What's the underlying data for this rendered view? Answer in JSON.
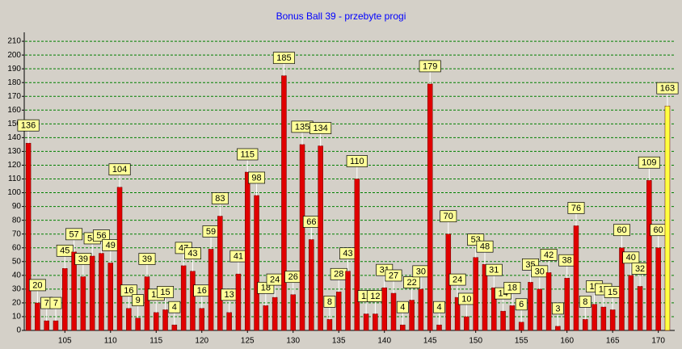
{
  "chart_data": {
    "type": "bar",
    "title": "Bonus Ball 39 - przebyte progi",
    "x": [
      101,
      102,
      103,
      104,
      105,
      106,
      107,
      108,
      109,
      110,
      111,
      112,
      113,
      114,
      115,
      116,
      117,
      118,
      119,
      120,
      121,
      122,
      123,
      124,
      125,
      126,
      127,
      128,
      129,
      130,
      131,
      132,
      133,
      134,
      135,
      136,
      137,
      138,
      139,
      140,
      141,
      142,
      143,
      144,
      145,
      146,
      147,
      148,
      149,
      150,
      151,
      152,
      153,
      154,
      155,
      156,
      157,
      158,
      159,
      160,
      161,
      162,
      163,
      164,
      165,
      166,
      167,
      168,
      169,
      170,
      171
    ],
    "values": [
      136,
      20,
      7,
      7,
      45,
      57,
      39,
      54,
      56,
      49,
      104,
      16,
      9,
      39,
      13,
      15,
      4,
      47,
      43,
      16,
      59,
      83,
      13,
      41,
      115,
      98,
      18,
      24,
      185,
      26,
      135,
      66,
      134,
      8,
      28,
      43,
      110,
      12,
      12,
      31,
      27,
      4,
      22,
      30,
      179,
      4,
      70,
      24,
      10,
      53,
      48,
      31,
      14,
      18,
      6,
      35,
      30,
      42,
      3,
      38,
      76,
      8,
      19,
      17,
      15,
      60,
      40,
      32,
      109,
      60,
      163
    ],
    "colors": [
      "#e00000",
      "#e00000",
      "#e00000",
      "#e00000",
      "#e00000",
      "#e00000",
      "#e00000",
      "#e00000",
      "#e00000",
      "#e00000",
      "#e00000",
      "#e00000",
      "#e00000",
      "#e00000",
      "#e00000",
      "#e00000",
      "#e00000",
      "#e00000",
      "#e00000",
      "#e00000",
      "#e00000",
      "#e00000",
      "#e00000",
      "#e00000",
      "#e00000",
      "#e00000",
      "#e00000",
      "#e00000",
      "#e00000",
      "#e00000",
      "#e00000",
      "#e00000",
      "#e00000",
      "#e00000",
      "#e00000",
      "#e00000",
      "#e00000",
      "#e00000",
      "#e00000",
      "#e00000",
      "#e00000",
      "#e00000",
      "#e00000",
      "#e00000",
      "#e00000",
      "#e00000",
      "#e00000",
      "#e00000",
      "#e00000",
      "#e00000",
      "#e00000",
      "#e00000",
      "#e00000",
      "#e00000",
      "#e00000",
      "#e00000",
      "#e00000",
      "#e00000",
      "#e00000",
      "#e00000",
      "#e00000",
      "#e00000",
      "#e00000",
      "#e00000",
      "#e00000",
      "#e00000",
      "#e00000",
      "#e00000",
      "#e00000",
      "#e00000",
      "#ffff40"
    ],
    "xlim": [
      100.55,
      171.8
    ],
    "xticks": [
      105,
      110,
      115,
      120,
      125,
      130,
      135,
      140,
      145,
      150,
      155,
      160,
      165,
      170
    ],
    "ylim": [
      0,
      216.5
    ],
    "yticks": [
      0,
      10,
      20,
      30,
      40,
      50,
      60,
      70,
      80,
      90,
      100,
      110,
      120,
      130,
      140,
      150,
      160,
      170,
      180,
      190,
      200,
      210
    ],
    "grid": true
  }
}
